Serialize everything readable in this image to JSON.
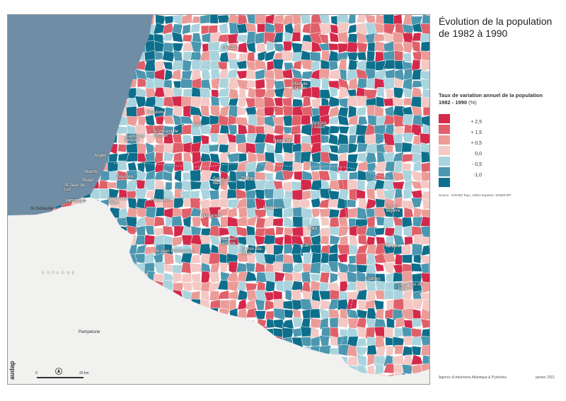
{
  "title": "Évolution de la population de 1982 à 1990",
  "legend": {
    "title": "Taux de variation annuel de la population",
    "period": "1982 - 1990",
    "unit": "(%)",
    "classes": [
      {
        "label": "+ 2,5",
        "color": "#d4294b"
      },
      {
        "label": "+ 1,5",
        "color": "#e0606a"
      },
      {
        "label": "+ 0,5",
        "color": "#ec9c98"
      },
      {
        "label": "0,0",
        "color": "#f4c8c4"
      },
      {
        "label": "- 0,5",
        "color": "#a9d4de"
      },
      {
        "label": "-1,0",
        "color": "#4c97b0"
      },
      {
        "label": "",
        "color": "#0d6f8c"
      }
    ]
  },
  "source": "Source : IGN-BD Topo, Admin Express / INSEE-RP",
  "agency": "Agence d'urbanisme Atlantique & Pyrénées",
  "date": "janvier 2021",
  "logo_text": "audap",
  "scale": {
    "start": "0",
    "end": "20 km"
  },
  "country_label": "ESPAGNE",
  "places": [
    {
      "name": "Mimizan"
    },
    {
      "name": "Mont de Marsan"
    },
    {
      "name": "Soustons"
    },
    {
      "name": "St-Vincent de Tyrosse"
    },
    {
      "name": "Dax"
    },
    {
      "name": "Capbreton"
    },
    {
      "name": "Aire sur l'Adour"
    },
    {
      "name": "Hagetmau"
    },
    {
      "name": "Anglet"
    },
    {
      "name": "Biarritz"
    },
    {
      "name": "Bayonne"
    },
    {
      "name": "Bidart"
    },
    {
      "name": "Boucau"
    },
    {
      "name": "St-Jean de Luz"
    },
    {
      "name": "Hendaye"
    },
    {
      "name": "St-Sébastien"
    },
    {
      "name": "Cambo les Bains"
    },
    {
      "name": "Hasparren"
    },
    {
      "name": "Orthez"
    },
    {
      "name": "Salies de Béarn"
    },
    {
      "name": "Morlaàs"
    },
    {
      "name": "Pau"
    },
    {
      "name": "Vic en Bigorre"
    },
    {
      "name": "Tarbes"
    },
    {
      "name": "Mauléon Licharre"
    },
    {
      "name": "Oloron Ste-Marie"
    },
    {
      "name": "St-Jean Pied de Port"
    },
    {
      "name": "Gan"
    },
    {
      "name": "Lourdes"
    },
    {
      "name": "Bagnères de Bigorre"
    },
    {
      "name": "Pampelune"
    },
    {
      "name": "Navarrenx"
    }
  ]
}
